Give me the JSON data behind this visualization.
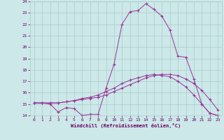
{
  "xlabel": "Windchill (Refroidissement éolien,°C)",
  "bg_color": "#cce8e8",
  "line_color": "#993399",
  "grid_color": "#aacccc",
  "xlim": [
    -0.5,
    23.5
  ],
  "ylim": [
    14,
    24
  ],
  "yticks": [
    14,
    15,
    16,
    17,
    18,
    19,
    20,
    21,
    22,
    23,
    24
  ],
  "xticks": [
    0,
    1,
    2,
    3,
    4,
    5,
    6,
    7,
    8,
    9,
    10,
    11,
    12,
    13,
    14,
    15,
    16,
    17,
    18,
    19,
    20,
    21,
    22,
    23
  ],
  "series1_x": [
    0,
    1,
    2,
    3,
    4,
    5,
    6,
    7,
    8,
    9,
    10,
    11,
    12,
    13,
    14,
    15,
    16,
    17,
    18,
    19,
    20,
    21,
    22,
    23
  ],
  "series1_y": [
    15.1,
    15.1,
    15.0,
    14.3,
    14.7,
    14.6,
    14.0,
    14.1,
    14.1,
    16.4,
    18.5,
    22.0,
    23.1,
    23.2,
    23.8,
    23.3,
    22.7,
    21.5,
    19.2,
    19.1,
    17.2,
    15.0,
    14.2,
    14.0
  ],
  "series2_x": [
    0,
    1,
    2,
    3,
    4,
    5,
    6,
    7,
    8,
    9,
    10,
    11,
    12,
    13,
    14,
    15,
    16,
    17,
    18,
    19,
    20,
    21,
    22,
    23
  ],
  "series2_y": [
    15.1,
    15.1,
    15.1,
    15.1,
    15.2,
    15.3,
    15.4,
    15.5,
    15.6,
    15.8,
    16.1,
    16.4,
    16.7,
    17.0,
    17.3,
    17.5,
    17.6,
    17.6,
    17.5,
    17.2,
    16.8,
    16.2,
    15.4,
    14.5
  ],
  "series3_x": [
    0,
    1,
    2,
    3,
    4,
    5,
    6,
    7,
    8,
    9,
    10,
    11,
    12,
    13,
    14,
    15,
    16,
    17,
    18,
    19,
    20,
    21,
    22,
    23
  ],
  "series3_y": [
    15.1,
    15.1,
    15.1,
    15.1,
    15.2,
    15.3,
    15.5,
    15.6,
    15.8,
    16.1,
    16.4,
    16.8,
    17.1,
    17.3,
    17.5,
    17.6,
    17.5,
    17.4,
    17.0,
    16.5,
    15.8,
    15.0,
    14.2,
    14.0
  ]
}
